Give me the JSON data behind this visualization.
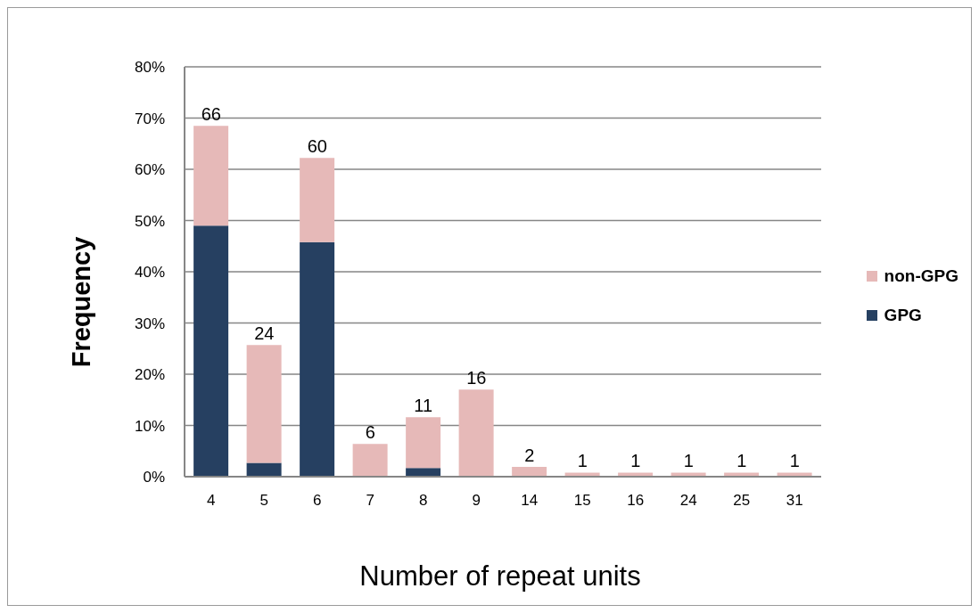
{
  "chart_data": {
    "type": "bar",
    "stacked": true,
    "xlabel": "Number of repeat units",
    "ylabel": "Frequency",
    "categories": [
      "4",
      "5",
      "6",
      "7",
      "8",
      "9",
      "14",
      "15",
      "16",
      "24",
      "25",
      "31"
    ],
    "series": [
      {
        "name": "GPG",
        "color": "#264061",
        "values": [
          49.0,
          2.7,
          45.8,
          0,
          1.7,
          0,
          0,
          0,
          0,
          0,
          0,
          0
        ]
      },
      {
        "name": "non-GPG",
        "color": "#e6b9b8",
        "values": [
          19.5,
          23.0,
          16.4,
          6.4,
          9.9,
          17.0,
          1.9,
          0.8,
          0.8,
          0.8,
          0.8,
          0.8
        ]
      }
    ],
    "annotations": [
      {
        "text": "66",
        "x": "4",
        "y": 68.5
      },
      {
        "text": "24",
        "x": "5",
        "y": 25.7
      },
      {
        "text": "60",
        "x": "6",
        "y": 62.2
      },
      {
        "text": "6",
        "x": "7",
        "y": 6.4
      },
      {
        "text": "11",
        "x": "8",
        "y": 11.6
      },
      {
        "text": "16",
        "x": "9",
        "y": 17.0
      },
      {
        "text": "2",
        "x": "14",
        "y": 1.9
      },
      {
        "text": "1",
        "x": "15",
        "y": 0.8
      },
      {
        "text": "1",
        "x": "16",
        "y": 0.8
      },
      {
        "text": "1",
        "x": "24",
        "y": 0.8
      },
      {
        "text": "1",
        "x": "25",
        "y": 0.8
      },
      {
        "text": "1",
        "x": "31",
        "y": 0.8
      }
    ],
    "ylim": [
      0,
      80
    ],
    "yticks": [
      {
        "value": 0,
        "label": "0%"
      },
      {
        "value": 10,
        "label": "10%"
      },
      {
        "value": 20,
        "label": "20%"
      },
      {
        "value": 30,
        "label": "30%"
      },
      {
        "value": 40,
        "label": "40%"
      },
      {
        "value": 50,
        "label": "50%"
      },
      {
        "value": 60,
        "label": "60%"
      },
      {
        "value": 70,
        "label": "70%"
      },
      {
        "value": 80,
        "label": "80%"
      }
    ],
    "grid": "y",
    "legend": "right"
  }
}
